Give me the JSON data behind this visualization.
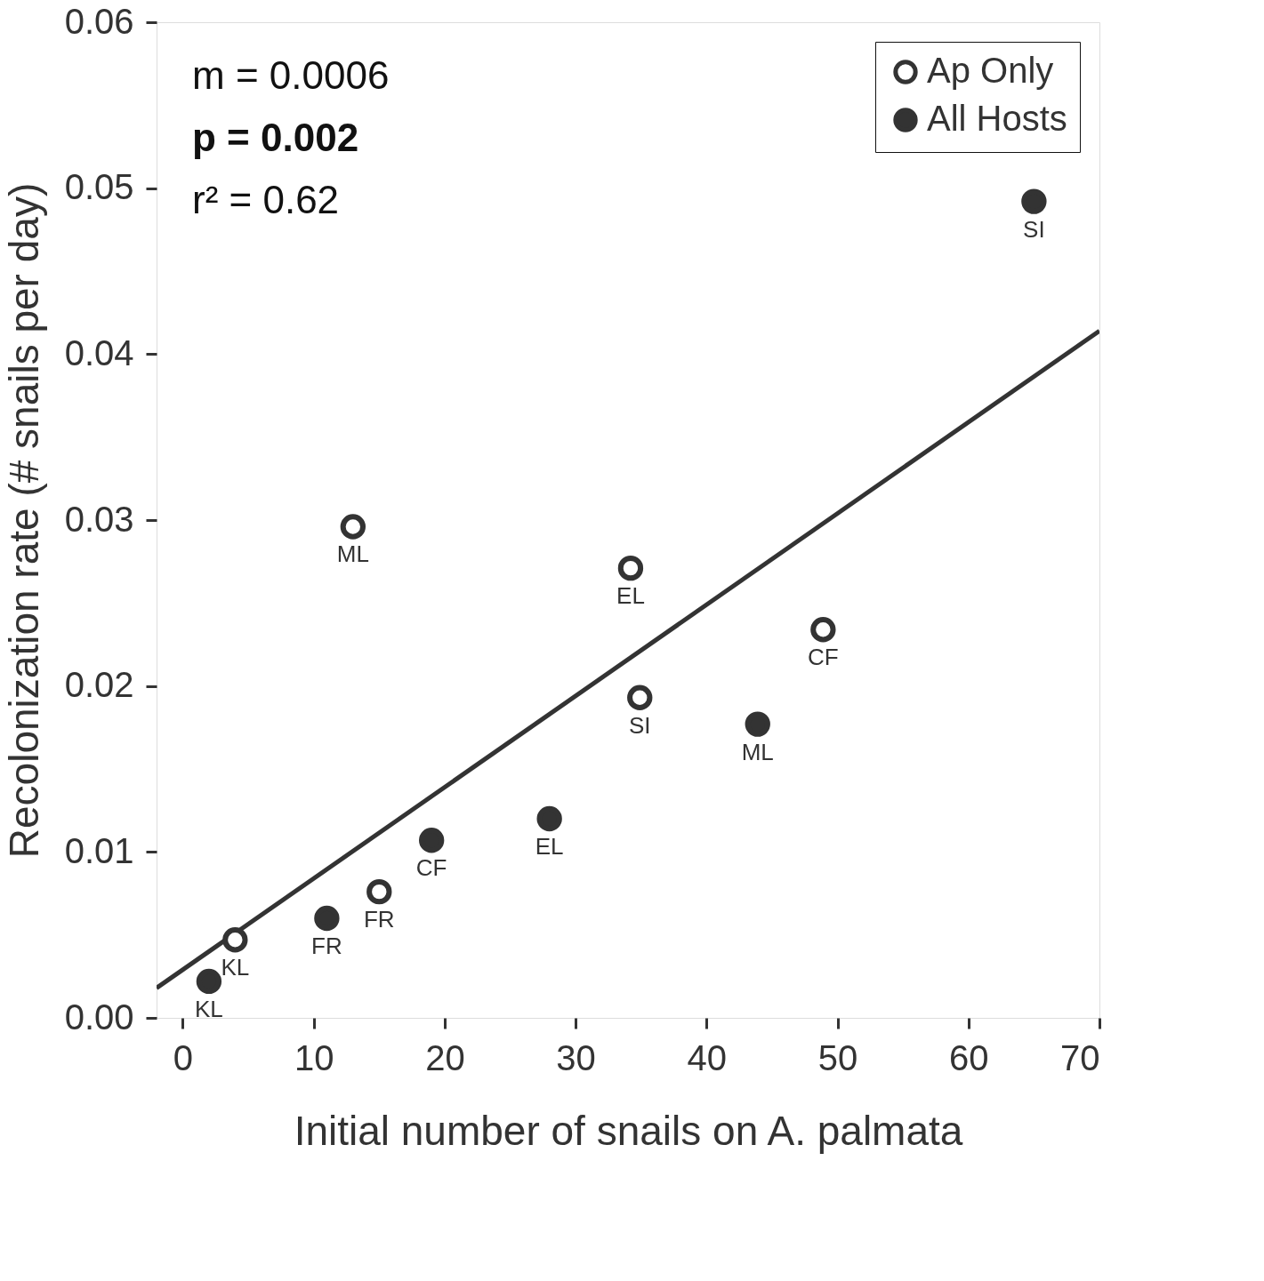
{
  "chart_data": {
    "type": "scatter",
    "xlabel": "Initial number of  snails on A. palmata",
    "ylabel": "Recolonization rate (# snails per day)",
    "xlim": [
      -2,
      70
    ],
    "ylim": [
      0,
      0.06
    ],
    "xticks": [
      0,
      10,
      20,
      30,
      40,
      50,
      60,
      70
    ],
    "yticks": [
      {
        "value": 0,
        "label": "0.00"
      },
      0.01,
      0.02,
      0.03,
      0.04,
      0.05,
      0.06
    ],
    "legend": "top right",
    "grid": false,
    "series": [
      {
        "name": "Ap Only",
        "color": "#333333",
        "marker": "circle",
        "x": [
          4,
          13,
          15,
          34.2,
          34.9,
          48.9
        ],
        "values": [
          0.0047,
          0.0296,
          0.0076,
          0.0271,
          0.0193,
          0.0234
        ]
      },
      {
        "name": "All Hosts",
        "color": "#333333",
        "marker": "circle",
        "x": [
          2,
          11,
          19,
          28,
          43.9,
          65
        ],
        "values": [
          0.0022,
          0.006,
          0.0107,
          0.012,
          0.0177,
          0.0492
        ]
      },
      {
        "type": "line",
        "color": "#333333",
        "marker": "none",
        "x": [
          -2,
          70
        ],
        "values": [
          0.0018,
          0.0414
        ]
      }
    ],
    "annotations": [
      "m = 0.0006",
      "p = 0.002",
      "r² = 0.62",
      {
        "text": "KL",
        "x": 4,
        "y": 0.0047
      },
      {
        "text": "ML",
        "x": 13,
        "y": 0.0296
      },
      {
        "text": "FR",
        "x": 15,
        "y": 0.0076
      },
      {
        "text": "EL",
        "x": 34.2,
        "y": 0.0271
      },
      {
        "text": "SI",
        "x": 34.9,
        "y": 0.0193
      },
      {
        "text": "CF",
        "x": 48.9,
        "y": 0.0234
      },
      {
        "text": "KL",
        "x": 2,
        "y": 0.0022
      },
      {
        "text": "FR",
        "x": 11,
        "y": 0.006
      },
      {
        "text": "CF",
        "x": 19,
        "y": 0.0107
      },
      {
        "text": "EL",
        "x": 28,
        "y": 0.012
      },
      {
        "text": "ML",
        "x": 43.9,
        "y": 0.0177
      },
      {
        "text": "SI",
        "x": 65,
        "y": 0.0492
      }
    ]
  }
}
